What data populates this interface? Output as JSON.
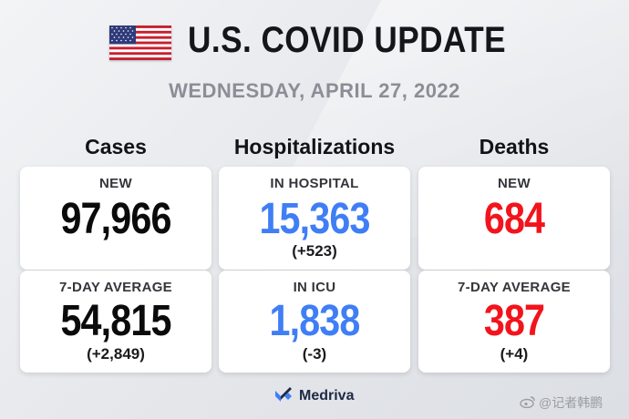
{
  "header": {
    "title": "U.S. COVID UPDATE",
    "date": "WEDNESDAY, APRIL 27, 2022"
  },
  "columns": [
    {
      "title": "Cases",
      "top": {
        "label": "NEW",
        "value": "97,966",
        "change": ""
      },
      "bottom": {
        "label": "7-DAY AVERAGE",
        "value": "54,815",
        "change": "(+2,849)"
      }
    },
    {
      "title": "Hospitalizations",
      "top": {
        "label": "IN HOSPITAL",
        "value": "15,363",
        "change": "(+523)"
      },
      "bottom": {
        "label": "IN ICU",
        "value": "1,838",
        "change": "(-3)"
      }
    },
    {
      "title": "Deaths",
      "top": {
        "label": "NEW",
        "value": "684",
        "change": ""
      },
      "bottom": {
        "label": "7-DAY AVERAGE",
        "value": "387",
        "change": "(+4)"
      }
    }
  ],
  "footer": {
    "brand": "Medriva",
    "watermark": "@记者韩鹏"
  },
  "colors": {
    "cases": "#0b0b0c",
    "hospitalizations": "#3f7ef5",
    "deaths": "#f2141c"
  },
  "icons": {
    "flag": "us-flag-icon",
    "logo": "medriva-logo-icon",
    "watermark": "weibo-icon"
  }
}
